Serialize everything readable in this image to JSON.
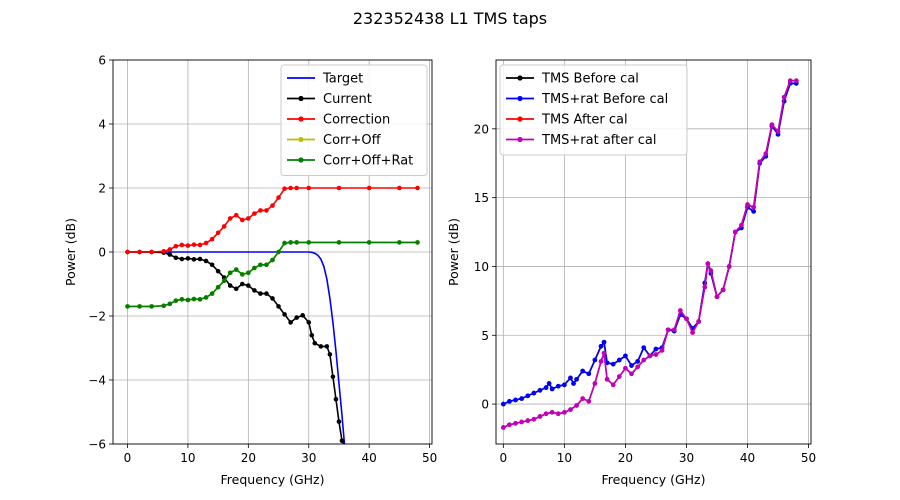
{
  "figure": {
    "title": "232352438 L1 TMS taps"
  },
  "chart_data": [
    {
      "type": "line",
      "xlabel": "Frequency (GHz)",
      "ylabel": "Power (dB)",
      "xlim": [
        -2.4,
        50.4
      ],
      "ylim": [
        -6,
        6
      ],
      "xticks": [
        0,
        10,
        20,
        30,
        40,
        50
      ],
      "yticks": [
        -6,
        -4,
        -2,
        0,
        2,
        4,
        6
      ],
      "grid": true,
      "legend_position": "top-right",
      "series": [
        {
          "name": "Target",
          "color": "#0000ff",
          "marker": false,
          "x": [
            0,
            5,
            10,
            15,
            20,
            25,
            29,
            30,
            30.5,
            31,
            31.5,
            32,
            32.5,
            33,
            33.5,
            34,
            34.5,
            35,
            35.5,
            36,
            36.5
          ],
          "y": [
            0,
            0,
            0,
            0,
            0,
            0,
            0,
            0,
            -0.01,
            -0.04,
            -0.1,
            -0.22,
            -0.45,
            -0.85,
            -1.45,
            -2.2,
            -3.1,
            -4.1,
            -5.1,
            -6.2,
            -7.5
          ]
        },
        {
          "name": "Current",
          "color": "#000000",
          "marker": true,
          "x": [
            0,
            2,
            4,
            6,
            7,
            8,
            9,
            10,
            11,
            12,
            13,
            14,
            15,
            16,
            17,
            18,
            19,
            20,
            21,
            22,
            23,
            24,
            25,
            26,
            27,
            28,
            29,
            30,
            30.5,
            31,
            32,
            33,
            33.5,
            34,
            34.5,
            35,
            35.5,
            36
          ],
          "y": [
            0,
            0,
            0,
            -0.02,
            -0.08,
            -0.18,
            -0.22,
            -0.2,
            -0.23,
            -0.22,
            -0.28,
            -0.4,
            -0.6,
            -0.8,
            -1.05,
            -1.15,
            -1.0,
            -1.05,
            -1.2,
            -1.3,
            -1.3,
            -1.45,
            -1.7,
            -1.95,
            -2.2,
            -2.05,
            -1.98,
            -2.2,
            -2.6,
            -2.85,
            -2.95,
            -2.95,
            -3.2,
            -3.9,
            -4.6,
            -5.3,
            -5.9,
            -6.1
          ]
        },
        {
          "name": "Correction",
          "color": "#ff0000",
          "marker": true,
          "x": [
            0,
            2,
            4,
            6,
            7,
            8,
            9,
            10,
            11,
            12,
            13,
            14,
            15,
            16,
            17,
            18,
            19,
            20,
            21,
            22,
            23,
            24,
            25,
            26,
            27,
            28,
            30,
            35,
            40,
            45,
            48
          ],
          "y": [
            0,
            0,
            0,
            0.02,
            0.08,
            0.18,
            0.22,
            0.2,
            0.23,
            0.22,
            0.28,
            0.4,
            0.6,
            0.8,
            1.05,
            1.15,
            1.0,
            1.05,
            1.2,
            1.3,
            1.3,
            1.45,
            1.7,
            1.98,
            2.0,
            2.0,
            2.0,
            2.0,
            2.0,
            2.0,
            2.0
          ]
        },
        {
          "name": "Corr+Off",
          "color": "#bfbf00",
          "marker": true,
          "x": [
            0,
            2,
            4,
            6,
            7,
            8,
            9,
            10,
            11,
            12,
            13,
            14,
            15,
            16,
            17,
            18,
            19,
            20,
            21,
            22,
            23,
            24,
            25,
            26,
            27,
            28,
            30,
            35,
            40,
            45,
            48
          ],
          "y": [
            -1.7,
            -1.7,
            -1.7,
            -1.68,
            -1.62,
            -1.52,
            -1.48,
            -1.5,
            -1.47,
            -1.48,
            -1.42,
            -1.3,
            -1.1,
            -0.9,
            -0.65,
            -0.55,
            -0.7,
            -0.65,
            -0.5,
            -0.4,
            -0.4,
            -0.25,
            0.0,
            0.28,
            0.3,
            0.3,
            0.3,
            0.3,
            0.3,
            0.3,
            0.3
          ]
        },
        {
          "name": "Corr+Off+Rat",
          "color": "#008000",
          "marker": true,
          "x": [
            0,
            2,
            4,
            6,
            7,
            8,
            9,
            10,
            11,
            12,
            13,
            14,
            15,
            16,
            17,
            18,
            19,
            20,
            21,
            22,
            23,
            24,
            25,
            26,
            27,
            28,
            30,
            35,
            40,
            45,
            48
          ],
          "y": [
            -1.7,
            -1.7,
            -1.7,
            -1.68,
            -1.62,
            -1.52,
            -1.48,
            -1.5,
            -1.47,
            -1.48,
            -1.42,
            -1.3,
            -1.1,
            -0.9,
            -0.65,
            -0.55,
            -0.7,
            -0.65,
            -0.5,
            -0.4,
            -0.4,
            -0.25,
            0.0,
            0.28,
            0.3,
            0.3,
            0.3,
            0.3,
            0.3,
            0.3,
            0.3
          ]
        }
      ]
    },
    {
      "type": "line",
      "xlabel": "Frequency (GHz)",
      "ylabel": "Power (dB)",
      "xlim": [
        -1.2,
        50.4
      ],
      "ylim": [
        -2.9,
        25
      ],
      "xticks": [
        0,
        10,
        20,
        30,
        40,
        50
      ],
      "yticks": [
        0,
        5,
        10,
        15,
        20
      ],
      "grid": true,
      "legend_position": "top-left",
      "series": [
        {
          "name": "TMS Before cal",
          "color": "#000000",
          "marker": true,
          "x": [
            0,
            1,
            2,
            3,
            4,
            5,
            6,
            7,
            7.5,
            8,
            9,
            10,
            11,
            11.5,
            12,
            13,
            14,
            15,
            16,
            16.5,
            17,
            18,
            19,
            20,
            21,
            22,
            23,
            24,
            25,
            26,
            27,
            28,
            29,
            30,
            31,
            32,
            33,
            33.5,
            34,
            35,
            36,
            37,
            38,
            39,
            40,
            41,
            42,
            43,
            44,
            45,
            46,
            47,
            48
          ],
          "y": [
            0,
            0.2,
            0.3,
            0.4,
            0.6,
            0.8,
            1.0,
            1.2,
            1.5,
            1.1,
            1.3,
            1.4,
            1.9,
            1.5,
            1.8,
            2.4,
            2.2,
            3.2,
            4.2,
            4.5,
            3.0,
            2.9,
            3.2,
            3.5,
            2.8,
            3.1,
            4.1,
            3.5,
            4.0,
            4.1,
            5.4,
            5.3,
            6.5,
            6.2,
            5.5,
            6.0,
            8.8,
            10.2,
            9.5,
            7.8,
            8.3,
            10.0,
            12.5,
            12.8,
            14.3,
            14.0,
            17.5,
            18.0,
            20.2,
            19.6,
            22.0,
            23.3,
            23.3
          ]
        },
        {
          "name": "TMS+rat Before cal",
          "color": "#0000ff",
          "marker": true,
          "x": [
            0,
            1,
            2,
            3,
            4,
            5,
            6,
            7,
            7.5,
            8,
            9,
            10,
            11,
            11.5,
            12,
            13,
            14,
            15,
            16,
            16.5,
            17,
            18,
            19,
            20,
            21,
            22,
            23,
            24,
            25,
            26,
            27,
            28,
            29,
            30,
            31,
            32,
            33,
            33.5,
            34,
            35,
            36,
            37,
            38,
            39,
            40,
            41,
            42,
            43,
            44,
            45,
            46,
            47,
            48
          ],
          "y": [
            0,
            0.2,
            0.3,
            0.4,
            0.6,
            0.8,
            1.0,
            1.2,
            1.5,
            1.1,
            1.3,
            1.4,
            1.9,
            1.5,
            1.8,
            2.4,
            2.2,
            3.2,
            4.2,
            4.5,
            3.0,
            2.9,
            3.2,
            3.5,
            2.8,
            3.1,
            4.1,
            3.5,
            4.0,
            4.1,
            5.4,
            5.3,
            6.5,
            6.2,
            5.5,
            6.0,
            8.8,
            10.2,
            9.5,
            7.8,
            8.3,
            10.0,
            12.5,
            12.8,
            14.3,
            14.0,
            17.5,
            18.0,
            20.2,
            19.6,
            22.0,
            23.3,
            23.3
          ]
        },
        {
          "name": "TMS After cal",
          "color": "#ff0000",
          "marker": true,
          "x": [
            0,
            1,
            2,
            3,
            4,
            5,
            6,
            7,
            8,
            9,
            10,
            11,
            12,
            13,
            14,
            15,
            16,
            16.5,
            17,
            18,
            19,
            20,
            21,
            22,
            23,
            24,
            25,
            26,
            27,
            28,
            29,
            30,
            31,
            32,
            33,
            33.5,
            34,
            35,
            36,
            37,
            38,
            39,
            40,
            41,
            42,
            43,
            44,
            45,
            46,
            47,
            48
          ],
          "y": [
            -1.7,
            -1.5,
            -1.4,
            -1.3,
            -1.2,
            -1.1,
            -0.9,
            -0.7,
            -0.6,
            -0.7,
            -0.6,
            -0.4,
            -0.1,
            0.4,
            0.2,
            1.5,
            3.1,
            3.7,
            1.8,
            1.4,
            2.0,
            2.6,
            2.2,
            2.7,
            3.2,
            3.5,
            3.6,
            3.9,
            5.4,
            5.4,
            6.8,
            6.2,
            5.2,
            6.0,
            8.5,
            10.2,
            9.7,
            7.8,
            8.3,
            10.0,
            12.5,
            13.0,
            14.5,
            14.3,
            17.6,
            18.2,
            20.3,
            19.8,
            22.3,
            23.5,
            23.5
          ]
        },
        {
          "name": "TMS+rat after cal",
          "color": "#bf00bf",
          "marker": true,
          "x": [
            0,
            1,
            2,
            3,
            4,
            5,
            6,
            7,
            8,
            9,
            10,
            11,
            12,
            13,
            14,
            15,
            16,
            16.5,
            17,
            18,
            19,
            20,
            21,
            22,
            23,
            24,
            25,
            26,
            27,
            28,
            29,
            30,
            31,
            32,
            33,
            33.5,
            34,
            35,
            36,
            37,
            38,
            39,
            40,
            41,
            42,
            43,
            44,
            45,
            46,
            47,
            48
          ],
          "y": [
            -1.7,
            -1.5,
            -1.4,
            -1.3,
            -1.2,
            -1.1,
            -0.9,
            -0.7,
            -0.6,
            -0.7,
            -0.6,
            -0.4,
            -0.1,
            0.4,
            0.2,
            1.5,
            3.1,
            3.7,
            1.8,
            1.4,
            2.0,
            2.6,
            2.2,
            2.7,
            3.2,
            3.5,
            3.6,
            3.9,
            5.4,
            5.4,
            6.8,
            6.2,
            5.2,
            6.0,
            8.5,
            10.2,
            9.7,
            7.8,
            8.3,
            10.0,
            12.5,
            13.0,
            14.5,
            14.3,
            17.6,
            18.2,
            20.3,
            19.8,
            22.3,
            23.5,
            23.5
          ]
        }
      ]
    }
  ]
}
